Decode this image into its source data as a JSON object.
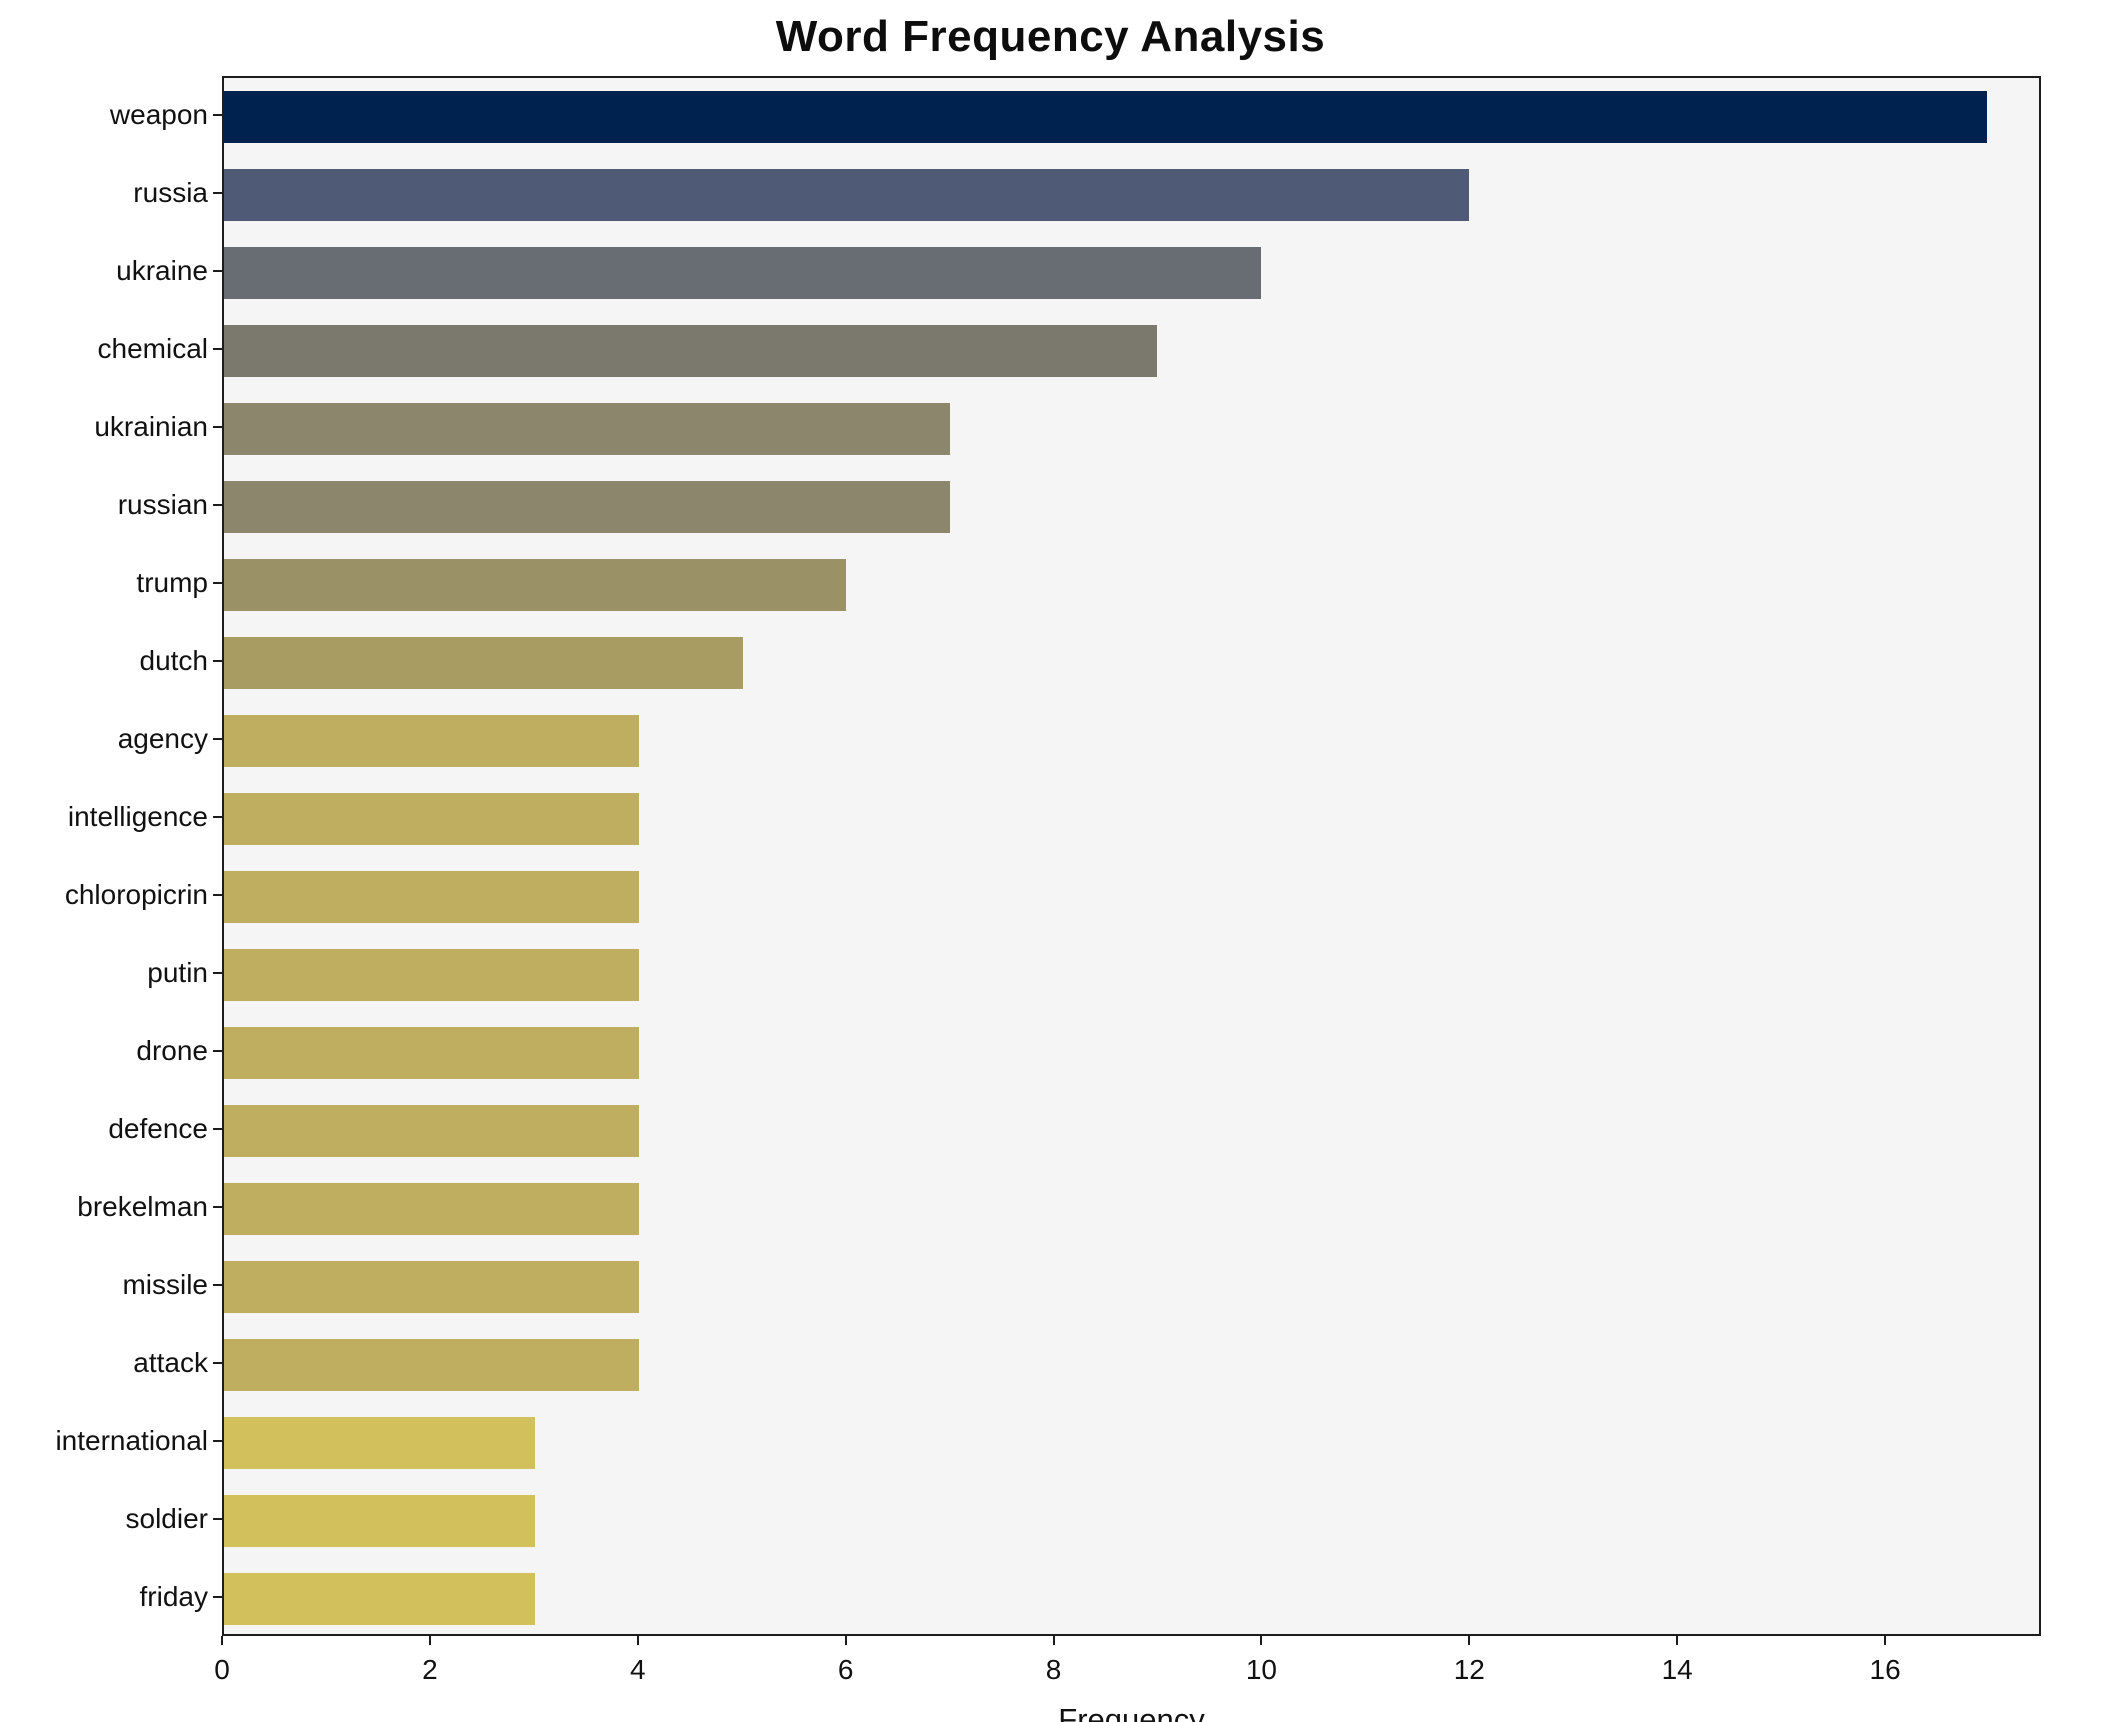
{
  "chart_data": {
    "type": "bar",
    "orientation": "horizontal",
    "title": "Word Frequency Analysis",
    "xlabel": "Frequency",
    "ylabel": "",
    "xlim": [
      0,
      17.5
    ],
    "xticks": [
      0,
      2,
      4,
      6,
      8,
      10,
      12,
      14,
      16
    ],
    "grid": false,
    "legend": "none",
    "plot_background": "#f5f5f6",
    "categories": [
      "weapon",
      "russia",
      "ukraine",
      "chemical",
      "ukrainian",
      "russian",
      "trump",
      "dutch",
      "agency",
      "intelligence",
      "chloropicrin",
      "putin",
      "drone",
      "defence",
      "brekelman",
      "missile",
      "attack",
      "international",
      "soldier",
      "friday"
    ],
    "values": [
      17,
      12,
      10,
      9,
      7,
      7,
      6,
      5,
      4,
      4,
      4,
      4,
      4,
      4,
      4,
      4,
      4,
      3,
      3,
      3
    ],
    "colors": [
      "#00224e",
      "#4e5a76",
      "#686d74",
      "#7b786e",
      "#8c866c",
      "#8c866c",
      "#9b9167",
      "#a89c63",
      "#bfae5f",
      "#bfae5f",
      "#bfae5f",
      "#bfae5f",
      "#bfae5f",
      "#bfae5f",
      "#bfae5f",
      "#bfae5f",
      "#bfae5f",
      "#d1c05c",
      "#d1c05c",
      "#d1c05c"
    ]
  }
}
